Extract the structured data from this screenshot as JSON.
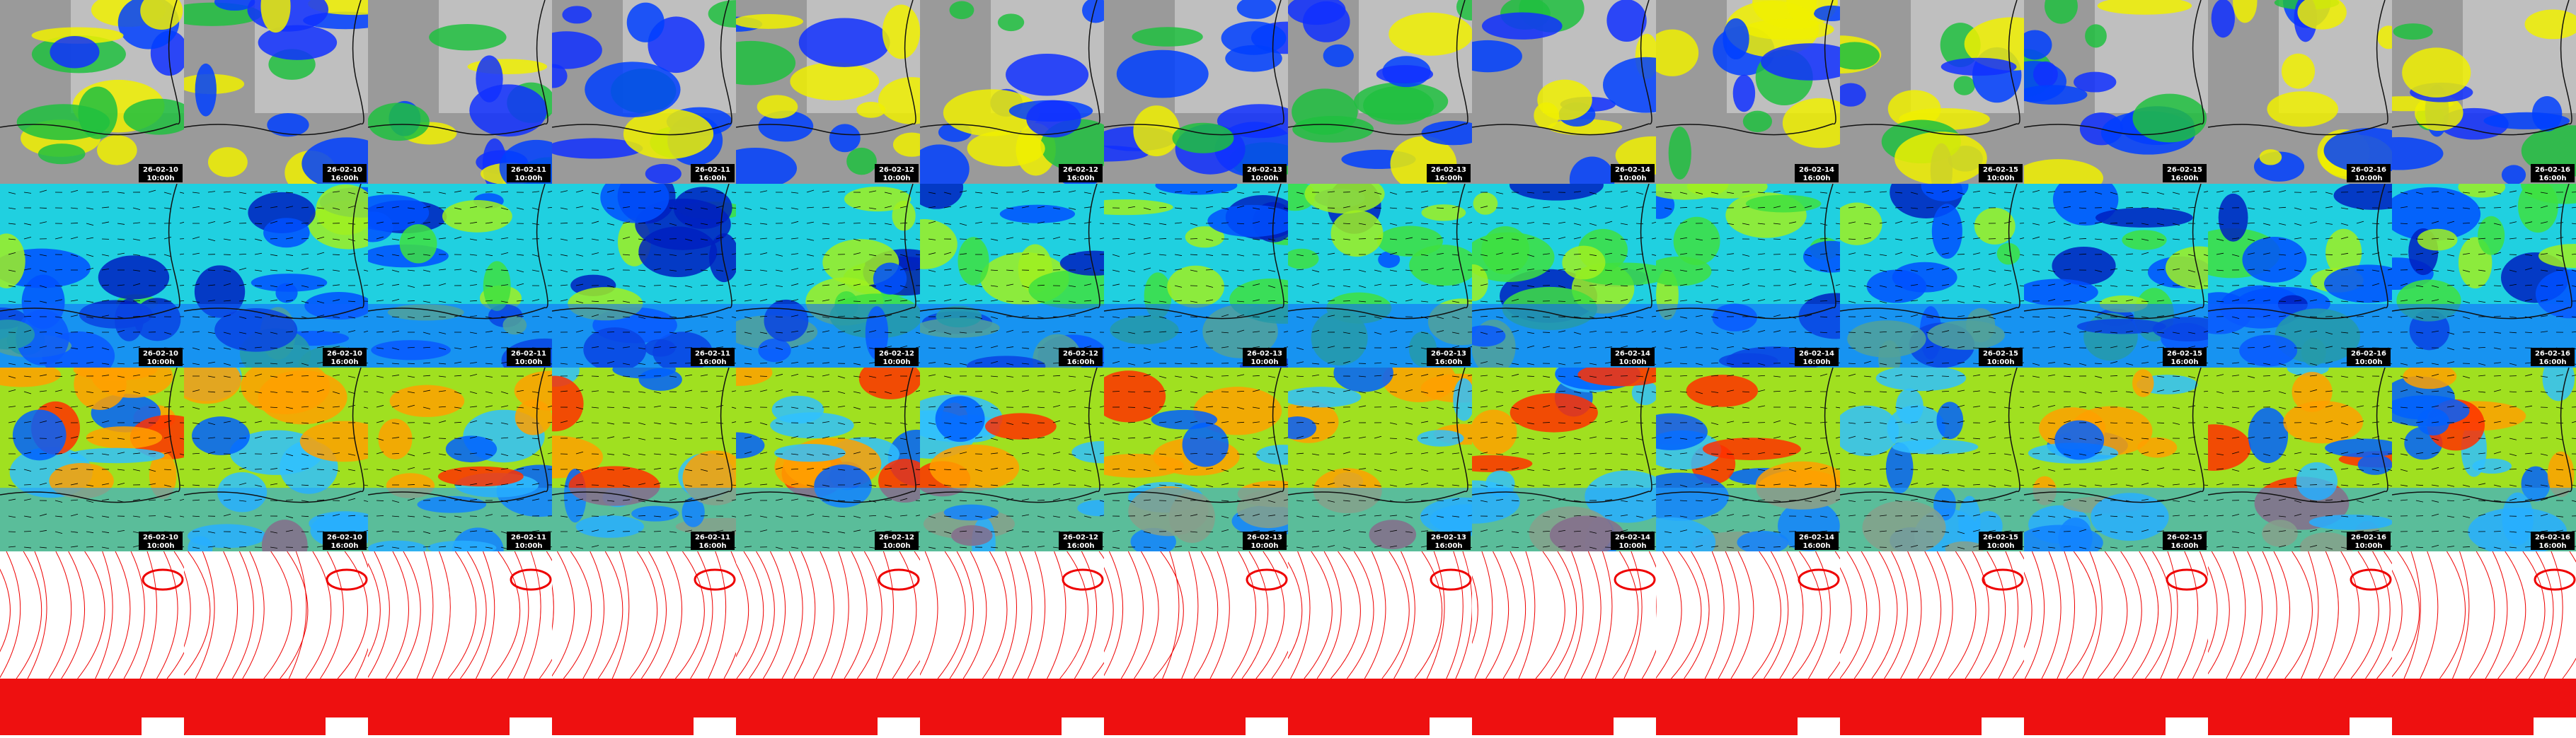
{
  "columns": [
    {
      "date": "26-02-10",
      "time": "10:00h"
    },
    {
      "date": "26-02-10",
      "time": "16:00h"
    },
    {
      "date": "26-02-11",
      "time": "10:00h"
    },
    {
      "date": "26-02-11",
      "time": "16:00h"
    },
    {
      "date": "26-02-12",
      "time": "10:00h"
    },
    {
      "date": "26-02-12",
      "time": "16:00h"
    },
    {
      "date": "26-02-13",
      "time": "10:00h"
    },
    {
      "date": "26-02-13",
      "time": "16:00h"
    },
    {
      "date": "26-02-14",
      "time": "10:00h"
    },
    {
      "date": "26-02-14",
      "time": "16:00h"
    },
    {
      "date": "26-02-15",
      "time": "10:00h"
    },
    {
      "date": "26-02-15",
      "time": "16:00h"
    },
    {
      "date": "26-02-16",
      "time": "10:00h"
    },
    {
      "date": "26-02-16",
      "time": "16:00h"
    }
  ]
}
